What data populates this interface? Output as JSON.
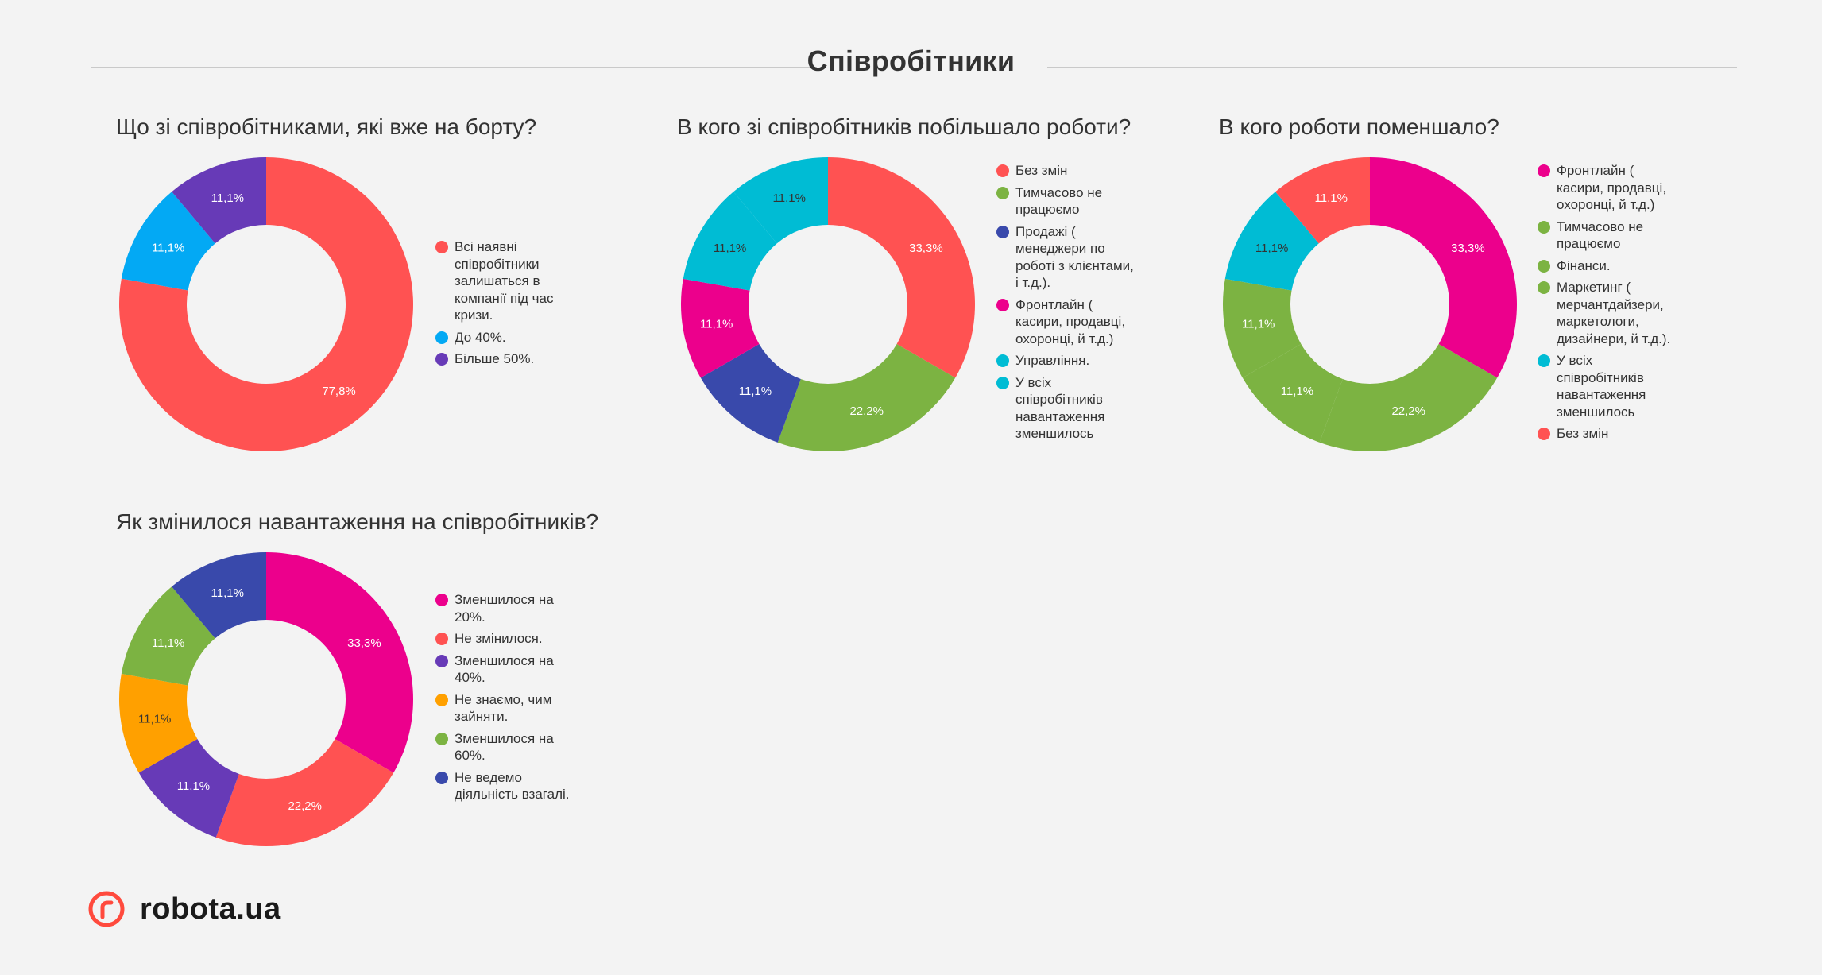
{
  "page": {
    "title": "Співробітники",
    "logo_text": "robota.ua"
  },
  "chart_data": [
    {
      "type": "pie",
      "title": "Що зі співробітниками, які вже на борту?",
      "categories": [
        "Всі наявні співробітники залишаться в компанії під час кризи.",
        "До 40%.",
        "Більше 50%."
      ],
      "legend_labels": [
        "Всі наявні\nспівробітники\nзалишаться в\nкомпанії під час\nкризи.",
        "До 40%.",
        "Більше 50%."
      ],
      "values": [
        77.8,
        11.1,
        11.1
      ],
      "data_labels": [
        "77,8%",
        "11,1%",
        "11,1%"
      ],
      "colors": [
        "#ff5252",
        "#03a9f4",
        "#673ab7"
      ],
      "legend_position": "right"
    },
    {
      "type": "pie",
      "title": "В кого зі співробітників побільшало роботи?",
      "categories": [
        "Без змін",
        "Тимчасово не працюємо",
        "Продажі ( менеджери по роботі з клієнтами, і т.д.).",
        "Фронтлайн ( касири, продавці, охоронці, й т.д.)",
        "Управління.",
        "У всіх співробітників навантаження зменшилось"
      ],
      "legend_labels": [
        "Без змін",
        "Тимчасово не\nпрацюємо",
        "Продажі (\nменеджери по\nроботі з клієнтами,\nі т.д.).",
        "Фронтлайн (\nкасири, продавці,\nохоронці, й т.д.)",
        "Управління.",
        "У всіх\nспівробітників\nнавантаження\nзменшилось"
      ],
      "values": [
        33.3,
        22.2,
        11.1,
        11.1,
        11.1,
        11.1
      ],
      "data_labels": [
        "33,3%",
        "22,2%",
        "11,1%",
        "11,1%",
        "11,1%",
        "11,1%"
      ],
      "colors": [
        "#ff5252",
        "#7cb342",
        "#3949ab",
        "#ec008c",
        "#00bcd4",
        "#00bcd4"
      ],
      "legend_position": "right"
    },
    {
      "type": "pie",
      "title": "В кого роботи поменшало?",
      "categories": [
        "Фронтлайн ( касири, продавці, охоронці, й т.д.)",
        "Тимчасово не працюємо",
        "Фінанси.",
        "Маркетинг ( мерчантдайзери, маркетологи, дизайнери, й т.д.).",
        "У всіх співробітників навантаження зменшилось",
        "Без змін"
      ],
      "legend_labels": [
        "Фронтлайн (\nкасири, продавці,\nохоронці, й т.д.)",
        "Тимчасово не\nпрацюємо",
        "Фінанси.",
        "Маркетинг (\nмерчантдайзери,\nмаркетологи,\nдизайнери, й т.д.).",
        "У всіх\nспівробітників\nнавантаження\nзменшилось",
        "Без змін"
      ],
      "values": [
        33.3,
        22.2,
        11.1,
        11.1,
        11.1,
        11.1
      ],
      "data_labels": [
        "33,3%",
        "22,2%",
        "11,1%",
        "11,1%",
        "11,1%",
        "11,1%"
      ],
      "colors": [
        "#ec008c",
        "#7cb342",
        "#7cb342",
        "#7cb342",
        "#00bcd4",
        "#ff5252"
      ],
      "legend_position": "right"
    },
    {
      "type": "pie",
      "title": "Як змінилося навантаження на співробітників?",
      "categories": [
        "Зменшилося на 20%.",
        "Не змінилося.",
        "Зменшилося на 40%.",
        "Не знаємо, чим зайняти.",
        "Зменшилося на 60%.",
        "Не ведемо діяльність взагалі."
      ],
      "legend_labels": [
        "Зменшилося на\n20%.",
        "Не змінилося.",
        "Зменшилося на\n40%.",
        "Не знаємо, чим\nзайняти.",
        "Зменшилося на\n60%.",
        "Не ведемо\nдіяльність взагалі."
      ],
      "values": [
        33.3,
        22.2,
        11.1,
        11.1,
        11.1,
        11.1
      ],
      "data_labels": [
        "33,3%",
        "22,2%",
        "11,1%",
        "11,1%",
        "11,1%",
        "11,1%"
      ],
      "colors": [
        "#ec008c",
        "#ff5252",
        "#673ab7",
        "#ffa000",
        "#7cb342",
        "#3949ab"
      ],
      "legend_position": "right"
    }
  ]
}
